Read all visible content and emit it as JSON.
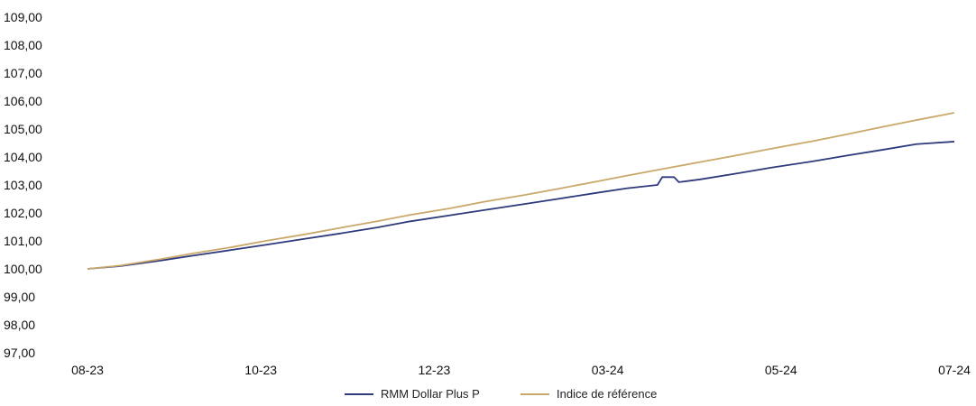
{
  "chart_data": {
    "type": "line",
    "title": "",
    "xlabel": "",
    "ylabel": "",
    "ylim": [
      97,
      109
    ],
    "y_ticks": [
      "97,00",
      "98,00",
      "99,00",
      "100,00",
      "101,00",
      "102,00",
      "103,00",
      "104,00",
      "105,00",
      "106,00",
      "107,00",
      "108,00",
      "109,00"
    ],
    "x_ticks": [
      "08-23",
      "10-23",
      "12-23",
      "03-24",
      "05-24",
      "07-24"
    ],
    "x_range": [
      "2023-08-01",
      "2024-07-31"
    ],
    "grid": false,
    "legend_placement": "bottom-center",
    "series": [
      {
        "name": "RMM Dollar Plus P",
        "color": "#2e3a7c",
        "points": [
          {
            "x": "2023-08-01",
            "y": 100.0
          },
          {
            "x": "2023-08-15",
            "y": 100.1
          },
          {
            "x": "2023-09-01",
            "y": 100.3
          },
          {
            "x": "2023-09-15",
            "y": 100.48
          },
          {
            "x": "2023-10-01",
            "y": 100.68
          },
          {
            "x": "2023-10-15",
            "y": 100.86
          },
          {
            "x": "2023-11-01",
            "y": 101.08
          },
          {
            "x": "2023-11-15",
            "y": 101.26
          },
          {
            "x": "2023-12-01",
            "y": 101.48
          },
          {
            "x": "2023-12-15",
            "y": 101.7
          },
          {
            "x": "2024-01-01",
            "y": 101.92
          },
          {
            "x": "2024-01-15",
            "y": 102.1
          },
          {
            "x": "2024-02-01",
            "y": 102.32
          },
          {
            "x": "2024-02-15",
            "y": 102.5
          },
          {
            "x": "2024-03-01",
            "y": 102.7
          },
          {
            "x": "2024-03-15",
            "y": 102.88
          },
          {
            "x": "2024-03-28",
            "y": 103.0
          },
          {
            "x": "2024-03-30",
            "y": 103.28
          },
          {
            "x": "2024-04-04",
            "y": 103.28
          },
          {
            "x": "2024-04-06",
            "y": 103.1
          },
          {
            "x": "2024-04-15",
            "y": 103.2
          },
          {
            "x": "2024-05-01",
            "y": 103.42
          },
          {
            "x": "2024-05-15",
            "y": 103.62
          },
          {
            "x": "2024-06-01",
            "y": 103.84
          },
          {
            "x": "2024-06-15",
            "y": 104.04
          },
          {
            "x": "2024-07-01",
            "y": 104.26
          },
          {
            "x": "2024-07-15",
            "y": 104.46
          },
          {
            "x": "2024-07-31",
            "y": 104.55
          }
        ]
      },
      {
        "name": "Indice de référence",
        "color": "#c9a86a",
        "points": [
          {
            "x": "2023-08-01",
            "y": 100.0
          },
          {
            "x": "2023-08-15",
            "y": 100.12
          },
          {
            "x": "2023-09-01",
            "y": 100.35
          },
          {
            "x": "2023-09-15",
            "y": 100.56
          },
          {
            "x": "2023-10-01",
            "y": 100.78
          },
          {
            "x": "2023-10-15",
            "y": 101.0
          },
          {
            "x": "2023-11-01",
            "y": 101.24
          },
          {
            "x": "2023-11-15",
            "y": 101.46
          },
          {
            "x": "2023-12-01",
            "y": 101.7
          },
          {
            "x": "2023-12-15",
            "y": 101.93
          },
          {
            "x": "2024-01-01",
            "y": 102.17
          },
          {
            "x": "2024-01-15",
            "y": 102.4
          },
          {
            "x": "2024-02-01",
            "y": 102.64
          },
          {
            "x": "2024-02-15",
            "y": 102.86
          },
          {
            "x": "2024-03-01",
            "y": 103.1
          },
          {
            "x": "2024-03-15",
            "y": 103.33
          },
          {
            "x": "2024-04-01",
            "y": 103.6
          },
          {
            "x": "2024-04-15",
            "y": 103.82
          },
          {
            "x": "2024-05-01",
            "y": 104.07
          },
          {
            "x": "2024-05-15",
            "y": 104.3
          },
          {
            "x": "2024-06-01",
            "y": 104.56
          },
          {
            "x": "2024-06-15",
            "y": 104.8
          },
          {
            "x": "2024-07-01",
            "y": 105.08
          },
          {
            "x": "2024-07-15",
            "y": 105.32
          },
          {
            "x": "2024-07-31",
            "y": 105.58
          }
        ]
      }
    ]
  }
}
